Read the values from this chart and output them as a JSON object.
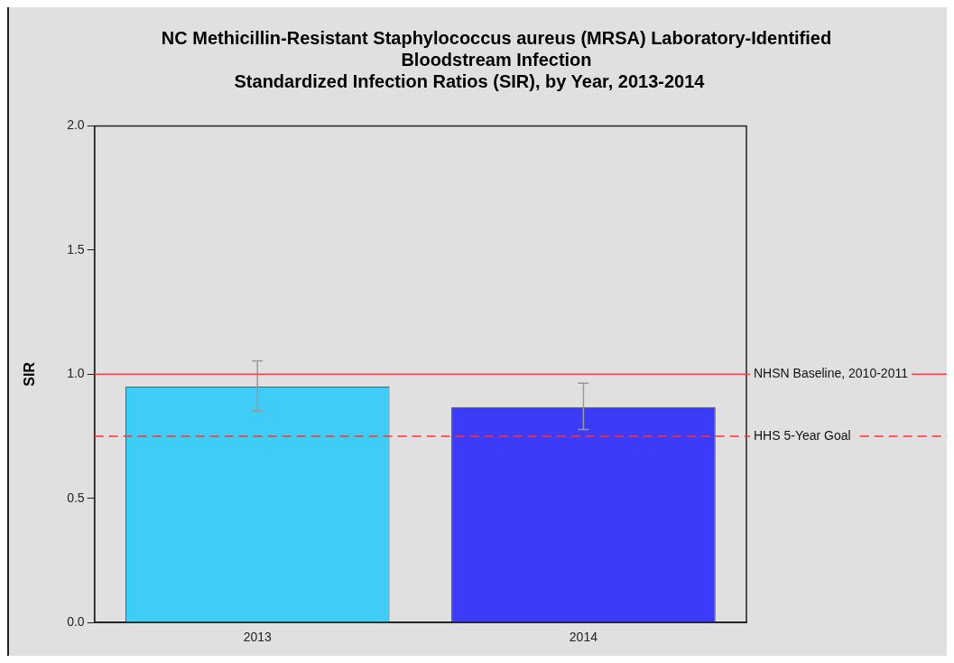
{
  "chart_data": {
    "type": "bar",
    "title": "NC Methicillin-Resistant Staphylococcus aureus (MRSA) Laboratory-Identified Bloodstream Infection",
    "subtitle": "Standardized Infection Ratios (SIR), by Year, 2013-2014",
    "ylabel": "SIR",
    "categories": [
      "2013",
      "2014"
    ],
    "values": [
      0.95,
      0.867
    ],
    "colors": [
      "#3fcdf8",
      "#3c3cf8"
    ],
    "errors": [
      [
        0.853,
        1.054
      ],
      [
        0.777,
        0.964
      ]
    ],
    "ylim": [
      0,
      2
    ],
    "yticks": [
      {
        "value": 0,
        "label": "0.0"
      },
      {
        "value": 0.5,
        "label": "0.5"
      },
      {
        "value": 1,
        "label": "1.0"
      },
      {
        "value": 1.5,
        "label": "1.5"
      },
      {
        "value": 2,
        "label": "2.0"
      }
    ],
    "ref_lines": [
      {
        "axis": "y",
        "value": 1,
        "label": "NHSN Baseline, 2010-2011",
        "color": "#ff4040",
        "line_style": "solid"
      },
      {
        "axis": "y",
        "value": 0.75,
        "label": "HHS 5-Year Goal",
        "color": "#ff3030",
        "line_style": "dashed"
      }
    ],
    "grid": false,
    "legend": false
  }
}
